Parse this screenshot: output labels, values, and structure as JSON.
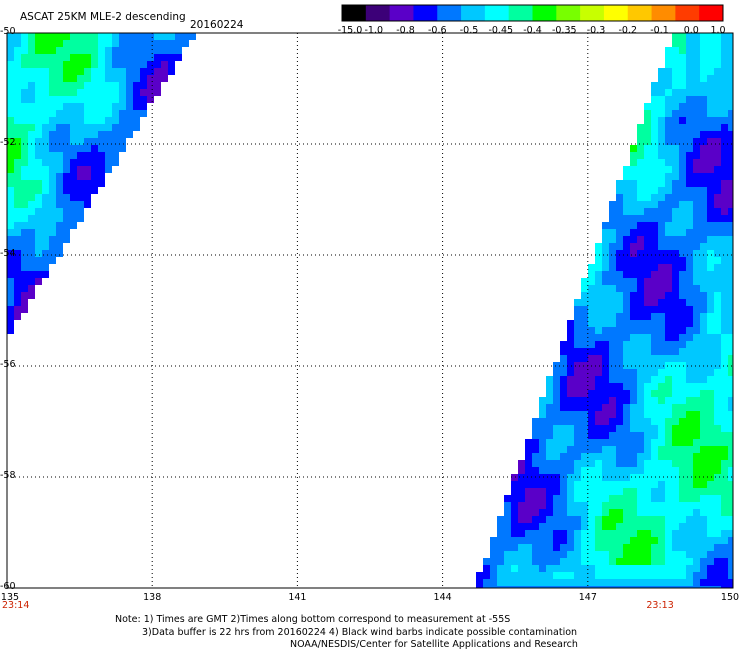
{
  "header": {
    "title": "ASCAT 25KM MLE-2 descending",
    "date": "20160224"
  },
  "colorbar": {
    "labels": [
      "-15.0",
      "-1.0",
      "-0.8",
      "-0.6",
      "-0.5",
      "-0.45",
      "-0.4",
      "-0.35",
      "-0.3",
      "-0.2",
      "-0.1",
      "0.0",
      "1.0"
    ],
    "colors": [
      "#000000",
      "#3c0078",
      "#5a00c8",
      "#0000ff",
      "#0078ff",
      "#00c8ff",
      "#00ffff",
      "#00ffa0",
      "#00ff00",
      "#78ff00",
      "#c8ff00",
      "#ffff00",
      "#ffc800",
      "#ff8c00",
      "#ff3c00",
      "#ff0000"
    ]
  },
  "map": {
    "lon_range": [
      135,
      150
    ],
    "lat_range": [
      -60,
      -50
    ],
    "lat_ticks": [
      "-50",
      "-52",
      "-54",
      "-56",
      "-58",
      "-60"
    ],
    "lon_ticks": [
      "135",
      "138",
      "141",
      "144",
      "147",
      "150"
    ],
    "times": [
      {
        "text": "23:14",
        "lon": 135
      },
      {
        "text": "23:13",
        "lon": 148.5
      }
    ],
    "grid": "dotted"
  },
  "notes": {
    "line1": "Note: 1) Times are GMT 2)Times along bottom correspond to measurement at -55S",
    "line2": "3)Data buffer is 22 hrs from 20160224 4) Black wind barbs indicate possible contamination",
    "line3": "NOAA/NESDIS/Center for Satellite Applications and Research"
  }
}
